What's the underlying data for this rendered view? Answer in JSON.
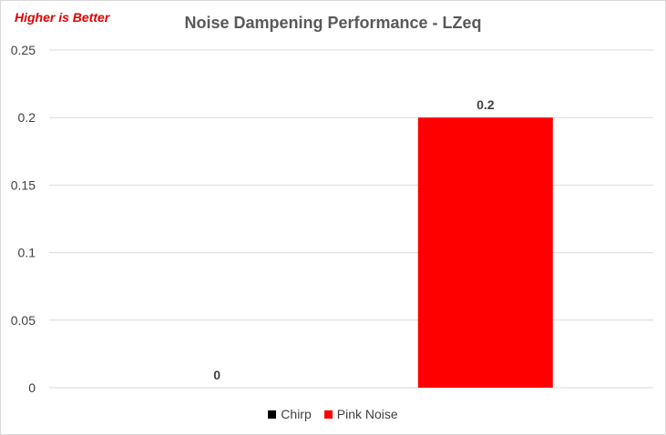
{
  "chart_data": {
    "type": "bar",
    "title": "Noise Dampening Performance - LZeq",
    "annotation": "Higher is Better",
    "xlabel": "",
    "ylabel": "",
    "categories": [
      ""
    ],
    "series": [
      {
        "name": "Chirp",
        "values": [
          0
        ],
        "color": "#000000",
        "data_label": "0"
      },
      {
        "name": "Pink Noise",
        "values": [
          0.2
        ],
        "color": "#ff0000",
        "data_label": "0.2"
      }
    ],
    "ylim": [
      0,
      0.25
    ],
    "yticks": [
      "0",
      "0.05",
      "0.1",
      "0.15",
      "0.2",
      "0.25"
    ],
    "ytick_values": [
      0,
      0.05,
      0.1,
      0.15,
      0.2,
      0.25
    ],
    "grid": true,
    "legend_position": "bottom"
  }
}
